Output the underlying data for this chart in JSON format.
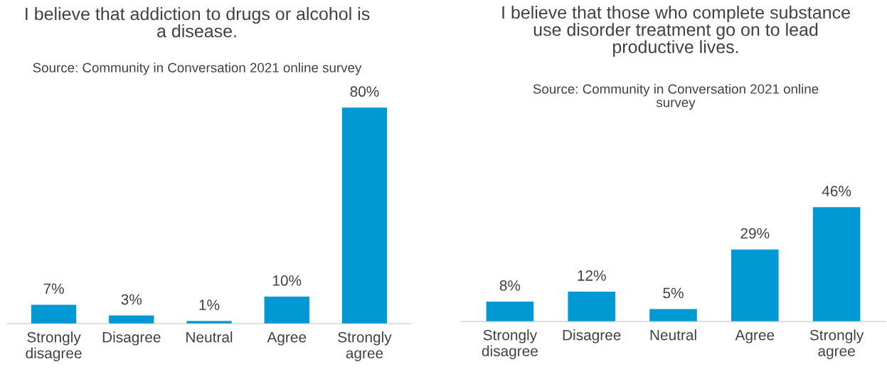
{
  "chart_data": [
    {
      "type": "bar",
      "title": "I believe that addiction to drugs or alcohol is a disease.",
      "subtitle": "Source: Community in Conversation 2021 online survey",
      "categories": [
        "Strongly disagree",
        "Disagree",
        "Neutral",
        "Agree",
        "Strongly agree"
      ],
      "values": [
        7,
        3,
        1,
        10,
        80
      ],
      "color": "#0099d4",
      "data_labels": true,
      "value_labels": [
        "7%",
        "3%",
        "1%",
        "10%",
        "80%"
      ],
      "grid": false,
      "legend": false
    },
    {
      "type": "bar",
      "title": "I believe that those who complete substance use disorder treatment go on to lead productive lives.",
      "subtitle": "Source: Community in Conversation 2021 online survey",
      "categories": [
        "Strongly disagree",
        "Disagree",
        "Neutral",
        "Agree",
        "Strongly agree"
      ],
      "values": [
        8,
        12,
        5,
        29,
        46
      ],
      "color": "#0099d4",
      "data_labels": true,
      "value_labels": [
        "8%",
        "12%",
        "5%",
        "29%",
        "46%"
      ],
      "grid": false,
      "legend": false
    }
  ]
}
